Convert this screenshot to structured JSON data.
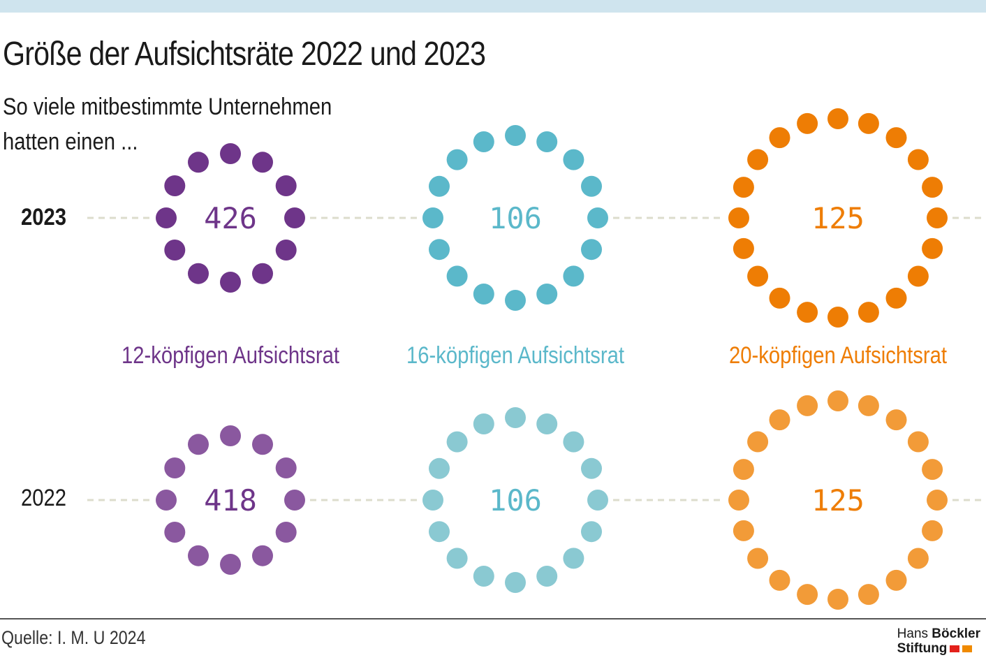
{
  "title": "Größe der Aufsichtsräte 2022 und 2023",
  "subtitle_line1": "So viele mitbestimmte Unternehmen",
  "subtitle_line2": "hatten einen ...",
  "source": "Quelle: I. M. U 2024",
  "logo": {
    "word1": "Hans",
    "word2": "Böckler",
    "word3": "Stiftung",
    "red": "#e3211b",
    "orange": "#f08a00"
  },
  "colors": {
    "grid": "#dcdccc",
    "text": "#1a1a1a",
    "purple_2023": "#6e3589",
    "purple_2022": "#8a589f",
    "teal_2023": "#5bb8ca",
    "teal_2022": "#8ac9d2",
    "orange_2023": "#ee7d04",
    "orange_2022": "#f29b38",
    "purple_text": "#6e3589",
    "teal_text": "#5bb8ca",
    "orange_text": "#ee7d04"
  },
  "chart_data": {
    "type": "dot-ring",
    "title": "Größe der Aufsichtsräte 2022 und 2023",
    "categories": [
      "12-köpfigen Aufsichtsrat",
      "16-köpfigen Aufsichtsrat",
      "20-köpfigen Aufsichtsrat"
    ],
    "board_sizes": [
      12,
      16,
      20
    ],
    "series": [
      {
        "name": "2023",
        "values": [
          426,
          106,
          125
        ]
      },
      {
        "name": "2022",
        "values": [
          418,
          106,
          125
        ]
      }
    ]
  }
}
